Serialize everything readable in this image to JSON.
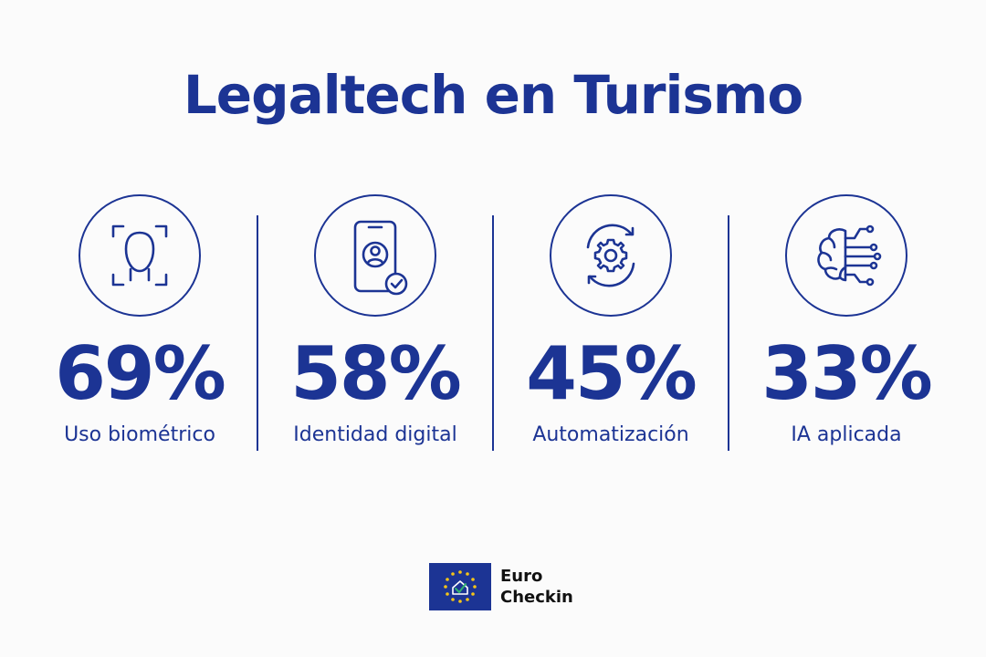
{
  "title": "Legaltech en Turismo",
  "stats": [
    {
      "value": "69%",
      "label": "Uso biométrico",
      "icon": "face-scan-icon"
    },
    {
      "value": "58%",
      "label": "Identidad digital",
      "icon": "phone-identity-icon"
    },
    {
      "value": "45%",
      "label": "Automatización",
      "icon": "gear-cycle-icon"
    },
    {
      "value": "33%",
      "label": "IA aplicada",
      "icon": "ai-brain-icon"
    }
  ],
  "brand": {
    "line1": "Euro",
    "line2": "Checkin",
    "logo": "eu-flag-house-check-icon"
  },
  "colors": {
    "primary": "#1c3494",
    "background": "#fbfbfb",
    "star": "#f5c518",
    "check": "#2fb36d"
  }
}
